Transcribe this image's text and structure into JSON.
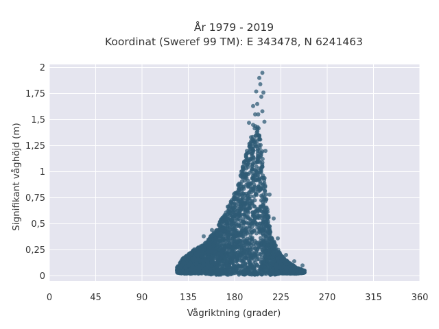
{
  "chart_data": {
    "type": "scatter",
    "title": "År 1979 - 2019",
    "subtitle": "Koordinat (Sweref 99 TM): E 343478, N 6241463",
    "xlabel": "Vågriktning (grader)",
    "ylabel": "Signifikant våghöjd (m)",
    "xlim": [
      0,
      360
    ],
    "ylim": [
      -0.05,
      2.03
    ],
    "xticks": [
      0,
      45,
      90,
      135,
      180,
      225,
      270,
      315,
      360
    ],
    "xtick_labels": [
      "0",
      "45",
      "90",
      "135",
      "180",
      "225",
      "270",
      "315",
      "360"
    ],
    "yticks": [
      0,
      0.25,
      0.5,
      0.75,
      1,
      1.25,
      1.5,
      1.75,
      2
    ],
    "ytick_labels": [
      "0",
      "0,25",
      "0,5",
      "0,75",
      "1",
      "1,25",
      "1,5",
      "1,75",
      "2"
    ],
    "grid": true,
    "legend": "none",
    "marker_color": "#2f5b76",
    "plot_background": "#e5e5ef",
    "envelope_note_free": true,
    "density_envelope": {
      "x": [
        124,
        130,
        140,
        150,
        160,
        170,
        180,
        185,
        190,
        195,
        200,
        205,
        210,
        215,
        220,
        225,
        230,
        240,
        248
      ],
      "y_max": [
        0.08,
        0.17,
        0.25,
        0.3,
        0.42,
        0.6,
        0.8,
        0.95,
        1.12,
        1.3,
        1.45,
        1.42,
        0.85,
        0.4,
        0.3,
        0.2,
        0.15,
        0.08,
        0.05
      ],
      "y_min": [
        0.03,
        0.02,
        0.02,
        0.02,
        0.01,
        0.01,
        0.01,
        0.01,
        0.01,
        0.01,
        0.01,
        0.01,
        0.01,
        0.01,
        0.01,
        0.02,
        0.02,
        0.02,
        0.03
      ]
    },
    "outlier_points": [
      {
        "x": 124,
        "y": 0.08
      },
      {
        "x": 150,
        "y": 0.38
      },
      {
        "x": 158,
        "y": 0.44
      },
      {
        "x": 186,
        "y": 0.88
      },
      {
        "x": 188,
        "y": 1.03
      },
      {
        "x": 191,
        "y": 1.16
      },
      {
        "x": 192,
        "y": 1.2
      },
      {
        "x": 194,
        "y": 1.47
      },
      {
        "x": 196,
        "y": 1.33
      },
      {
        "x": 198,
        "y": 1.45
      },
      {
        "x": 198,
        "y": 1.63
      },
      {
        "x": 200,
        "y": 1.55
      },
      {
        "x": 201,
        "y": 1.77
      },
      {
        "x": 202,
        "y": 1.65
      },
      {
        "x": 203,
        "y": 1.55
      },
      {
        "x": 204,
        "y": 1.9
      },
      {
        "x": 205,
        "y": 1.84
      },
      {
        "x": 206,
        "y": 1.72
      },
      {
        "x": 207,
        "y": 1.95
      },
      {
        "x": 207,
        "y": 1.58
      },
      {
        "x": 208,
        "y": 1.76
      },
      {
        "x": 209,
        "y": 1.48
      },
      {
        "x": 210,
        "y": 1.2
      },
      {
        "x": 214,
        "y": 0.78
      },
      {
        "x": 218,
        "y": 0.55
      },
      {
        "x": 222,
        "y": 0.36
      },
      {
        "x": 230,
        "y": 0.2
      },
      {
        "x": 238,
        "y": 0.14
      },
      {
        "x": 246,
        "y": 0.1
      },
      {
        "x": 248,
        "y": 0.05
      }
    ]
  }
}
